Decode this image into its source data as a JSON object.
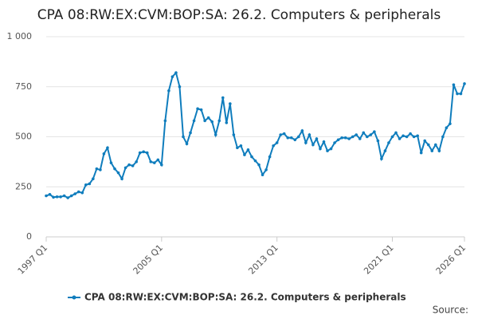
{
  "chart_data": {
    "type": "line",
    "title": "CPA 08:RW:EX:CVM:BOP:SA: 26.2. Computers & peripherals",
    "source": "Source:",
    "categories": [
      "1997 Q1",
      null,
      null,
      null,
      null,
      null,
      null,
      null,
      null,
      null,
      null,
      null,
      null,
      null,
      null,
      null,
      null,
      null,
      null,
      null,
      null,
      null,
      null,
      null,
      null,
      null,
      null,
      null,
      null,
      null,
      null,
      null,
      "2005 Q1",
      null,
      null,
      null,
      null,
      null,
      null,
      null,
      null,
      null,
      null,
      null,
      null,
      null,
      null,
      null,
      null,
      null,
      null,
      null,
      null,
      null,
      null,
      null,
      null,
      null,
      null,
      null,
      null,
      null,
      null,
      null,
      "2013 Q1",
      null,
      null,
      null,
      null,
      null,
      null,
      null,
      null,
      null,
      null,
      null,
      null,
      null,
      null,
      null,
      null,
      null,
      null,
      null,
      null,
      null,
      null,
      null,
      null,
      null,
      null,
      null,
      null,
      null,
      null,
      null,
      "2021 Q1",
      null,
      null,
      null,
      null,
      null,
      null,
      null,
      null,
      null,
      null,
      null,
      null,
      null,
      null,
      null,
      null,
      null,
      null,
      null,
      "2026 Q1"
    ],
    "series": [
      {
        "name": "CPA 08:RW:EX:CVM:BOP:SA: 26.2. Computers & peripherals",
        "color": "#0f7dbd",
        "values": [
          205,
          212,
          198,
          200,
          200,
          205,
          195,
          205,
          215,
          225,
          220,
          260,
          265,
          290,
          340,
          335,
          415,
          445,
          370,
          340,
          320,
          290,
          345,
          360,
          355,
          375,
          420,
          425,
          420,
          375,
          370,
          385,
          360,
          580,
          730,
          800,
          820,
          750,
          500,
          465,
          520,
          580,
          640,
          635,
          580,
          595,
          575,
          510,
          580,
          695,
          570,
          665,
          510,
          445,
          455,
          410,
          435,
          400,
          380,
          360,
          310,
          335,
          400,
          455,
          470,
          510,
          515,
          495,
          495,
          485,
          500,
          530,
          470,
          510,
          460,
          490,
          440,
          475,
          430,
          440,
          470,
          485,
          495,
          495,
          490,
          500,
          510,
          490,
          520,
          500,
          510,
          525,
          480,
          390,
          430,
          470,
          500,
          520,
          490,
          505,
          500,
          515,
          500,
          505,
          420,
          480,
          460,
          430,
          460,
          430,
          500,
          545,
          565,
          760,
          715,
          715,
          765
        ]
      }
    ],
    "ylim": [
      0,
      1000
    ],
    "yticks": [
      0,
      250,
      500,
      750,
      {
        "value": 1000,
        "label": "1 000"
      }
    ],
    "grid": true,
    "legend": "bottom"
  }
}
